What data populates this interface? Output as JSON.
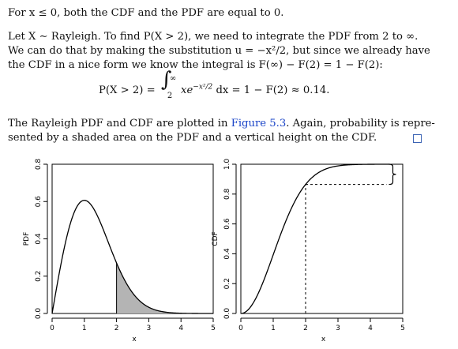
{
  "text": {
    "p1": "For x ≤ 0, both the CDF and the PDF are equal to 0.",
    "p2_lines": [
      "Let X ∼ Rayleigh. To find P(X > 2), we need to integrate the PDF from 2 to ∞.",
      "We can do that by making the substitution u = −x²/2, but since we already have",
      "the CDF in a nice form we know the integral is F(∞) − F(2) = 1 − F(2):"
    ],
    "equation": {
      "lhs": "P(X > 2) =",
      "integral": "∫",
      "upper": "∞",
      "lower": "2",
      "integrand": "xe",
      "exponent": "−x²/2",
      "rest": "dx = 1 − F(2) ≈ 0.14."
    },
    "p3_line1_before": "The Rayleigh PDF and CDF are plotted in ",
    "p3_link": "Figure 5.3",
    "p3_line1_after": ". Again, probability is repre-",
    "p3_line2": "sented by a shaded area on the PDF and a vertical height on the CDF."
  },
  "chart_data": [
    {
      "type": "area",
      "function": "Rayleigh PDF f(x) = x·exp(−x²/2)",
      "xlabel": "x",
      "ylabel": "PDF",
      "xlim": [
        0,
        5
      ],
      "ylim": [
        0,
        0.8
      ],
      "xticks": [
        "0",
        "1",
        "2",
        "3",
        "4",
        "5"
      ],
      "yticks": [
        "0.0",
        "0.2",
        "0.4",
        "0.6",
        "0.8"
      ],
      "shaded_from": 2,
      "x": [
        0,
        0.5,
        1,
        1.5,
        2,
        2.5,
        3,
        3.5,
        4,
        5
      ],
      "y": [
        0,
        0.441,
        0.607,
        0.487,
        0.271,
        0.11,
        0.033,
        0.008,
        0.001,
        0.0
      ]
    },
    {
      "type": "line",
      "function": "Rayleigh CDF F(x) = 1 − exp(−x²/2)",
      "xlabel": "x",
      "ylabel": "CDF",
      "xlim": [
        0,
        5
      ],
      "ylim": [
        0,
        1.0
      ],
      "xticks": [
        "0",
        "1",
        "2",
        "3",
        "4",
        "5"
      ],
      "yticks": [
        "0.0",
        "0.2",
        "0.4",
        "0.6",
        "0.8",
        "1.0"
      ],
      "marked_x": 2,
      "x": [
        0,
        0.5,
        1,
        1.5,
        2,
        2.5,
        3,
        3.5,
        4,
        4.5
      ],
      "y": [
        0,
        0.118,
        0.393,
        0.675,
        0.865,
        0.956,
        0.989,
        0.998,
        1.0,
        1.0
      ]
    }
  ]
}
